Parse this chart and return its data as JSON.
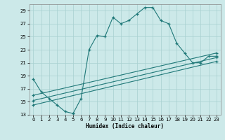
{
  "xlabel": "Humidex (Indice chaleur)",
  "xlim": [
    -0.5,
    23.5
  ],
  "ylim": [
    13,
    30
  ],
  "xticks": [
    0,
    1,
    2,
    3,
    4,
    5,
    6,
    7,
    8,
    9,
    10,
    11,
    12,
    13,
    14,
    15,
    16,
    17,
    18,
    19,
    20,
    21,
    22,
    23
  ],
  "yticks": [
    13,
    15,
    17,
    19,
    21,
    23,
    25,
    27,
    29
  ],
  "line_color": "#1f7878",
  "bg_color": "#cce9e9",
  "grid_color": "#a8d0d0",
  "series": [
    {
      "x": [
        0,
        1,
        2,
        3,
        4,
        5,
        5,
        6,
        7,
        8,
        9,
        10,
        11,
        12,
        13,
        14,
        15,
        16,
        17,
        18,
        19,
        20,
        21,
        22,
        23
      ],
      "y": [
        18.5,
        16.5,
        15.5,
        14.5,
        13.5,
        13.2,
        13.2,
        15.5,
        23,
        25.2,
        25,
        28,
        27,
        27.5,
        28.5,
        29.5,
        29.5,
        27.5,
        27,
        24,
        22.5,
        21,
        21,
        22,
        22
      ]
    },
    {
      "x": [
        0,
        23
      ],
      "y": [
        16.0,
        22.5
      ]
    },
    {
      "x": [
        0,
        23
      ],
      "y": [
        15.2,
        21.8
      ]
    },
    {
      "x": [
        0,
        23
      ],
      "y": [
        14.5,
        21.2
      ]
    }
  ]
}
